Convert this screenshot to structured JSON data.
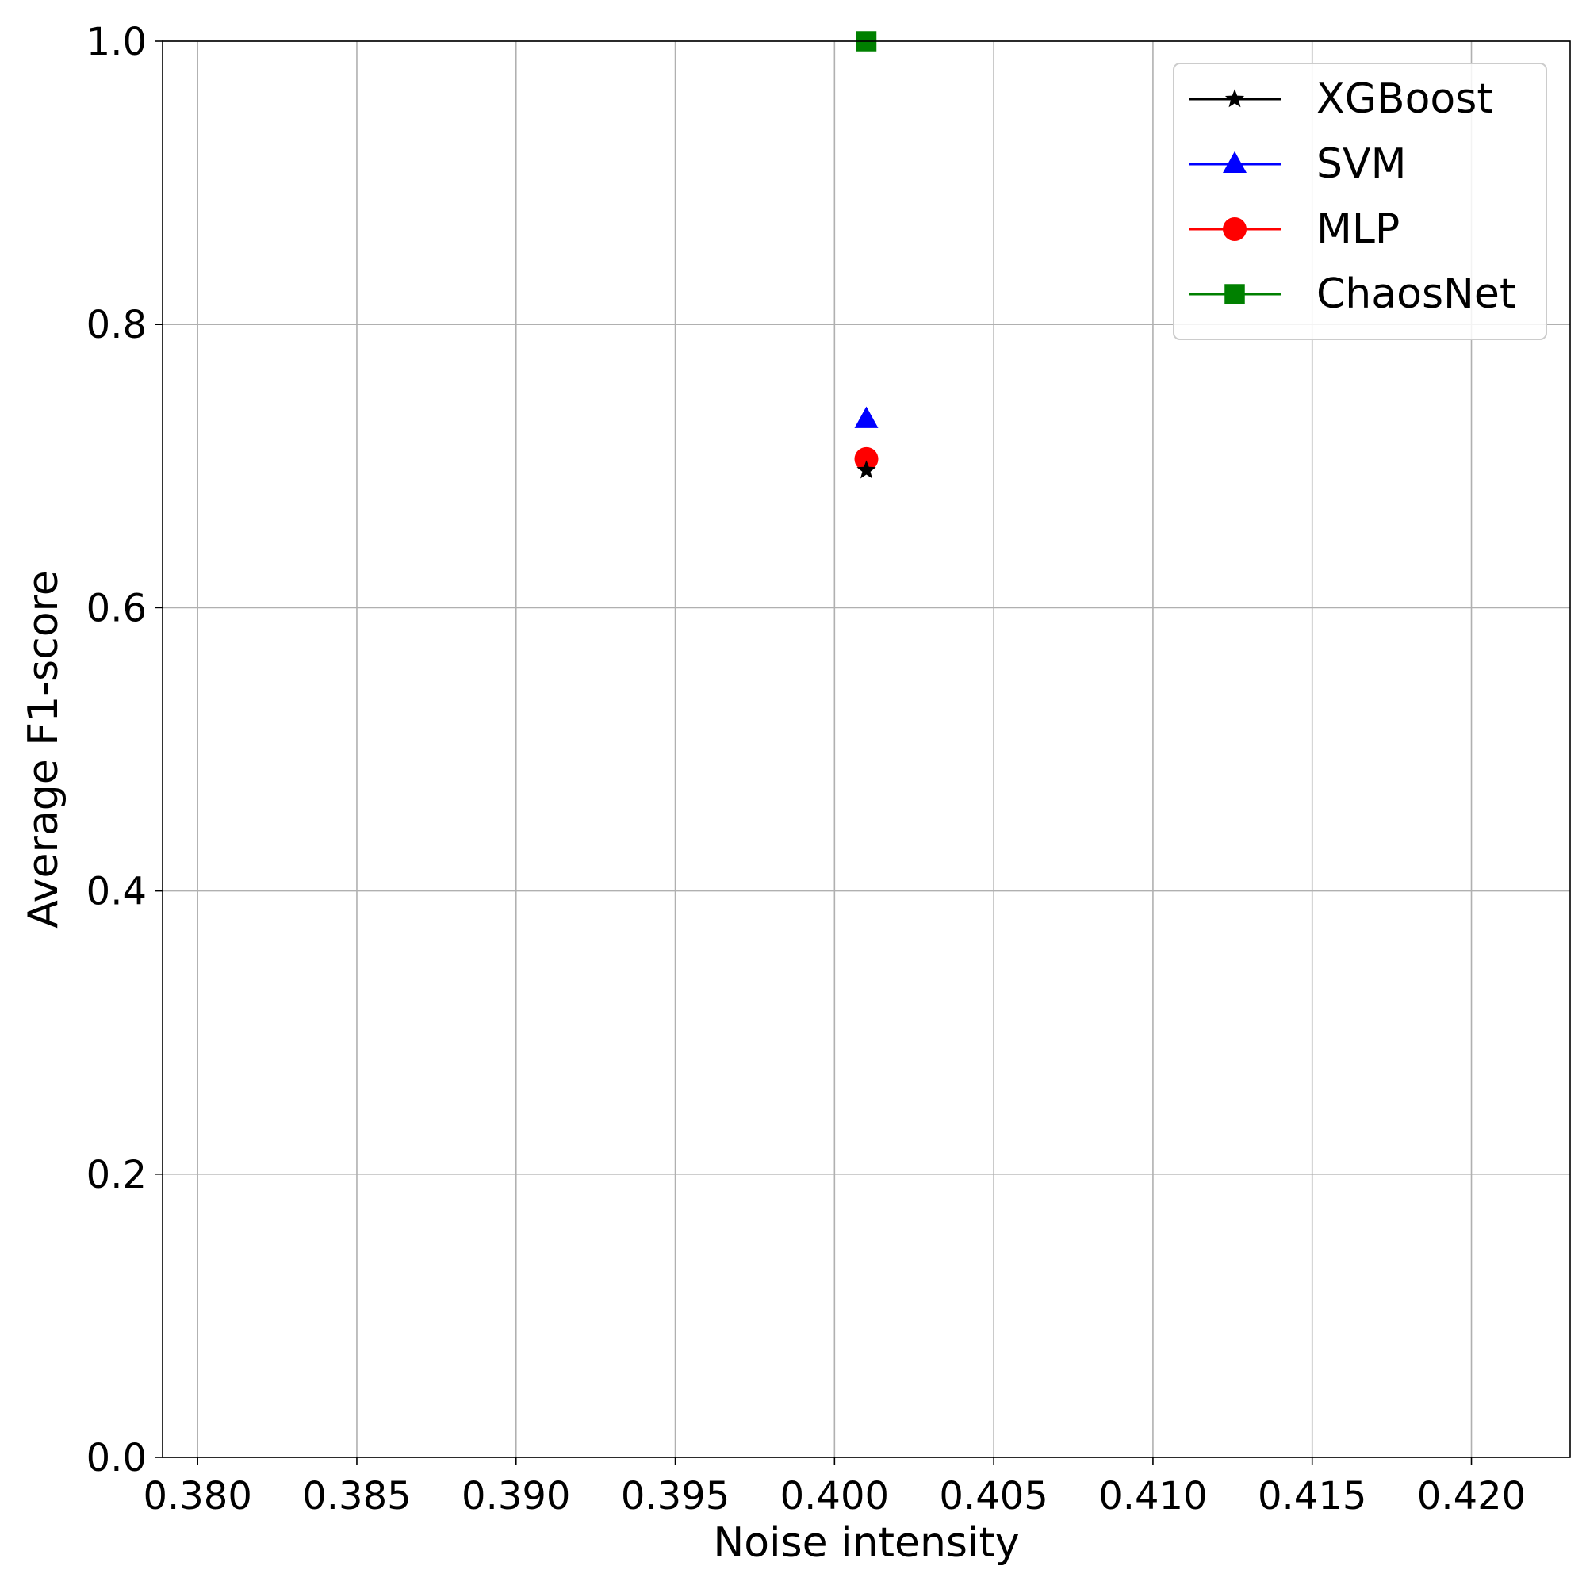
{
  "chart_data": {
    "type": "scatter",
    "title": "",
    "xlabel": "Noise intensity",
    "ylabel": "Average F1-score",
    "xlim": [
      0.3789,
      0.4231
    ],
    "ylim": [
      0.0,
      1.0
    ],
    "xticks": [
      "0.380",
      "0.385",
      "0.390",
      "0.395",
      "0.400",
      "0.405",
      "0.410",
      "0.415",
      "0.420"
    ],
    "xtick_values": [
      0.38,
      0.385,
      0.39,
      0.395,
      0.4,
      0.405,
      0.41,
      0.415,
      0.42
    ],
    "yticks": [
      "0.0",
      "0.2",
      "0.4",
      "0.6",
      "0.8",
      "1.0"
    ],
    "ytick_values": [
      0.0,
      0.2,
      0.4,
      0.6,
      0.8,
      1.0
    ],
    "grid": true,
    "legend_position": "top-right",
    "series": [
      {
        "name": "XGBoost",
        "color": "#000000",
        "marker": "star",
        "x": [
          0.401
        ],
        "y": [
          0.697
        ]
      },
      {
        "name": "SVM",
        "color": "#0000ff",
        "marker": "triangle",
        "x": [
          0.401
        ],
        "y": [
          0.733
        ]
      },
      {
        "name": "MLP",
        "color": "#ff0000",
        "marker": "circle",
        "x": [
          0.401
        ],
        "y": [
          0.705
        ]
      },
      {
        "name": "ChaosNet",
        "color": "#008000",
        "marker": "square",
        "x": [
          0.401
        ],
        "y": [
          1.0
        ]
      }
    ]
  }
}
